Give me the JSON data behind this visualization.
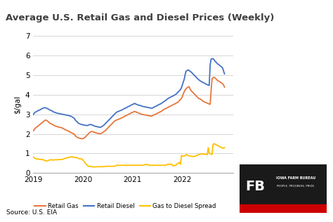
{
  "title": "Average U.S. Retail Gas and Diesel Prices (Weekly)",
  "ylabel": "$/gal",
  "source": "Source: U.S. EIA",
  "ylim": [
    0,
    7
  ],
  "yticks": [
    0,
    1,
    2,
    3,
    4,
    5,
    6,
    7
  ],
  "xlim": [
    0,
    209
  ],
  "xtick_positions": [
    0,
    52,
    104,
    156
  ],
  "xtick_labels": [
    "2019",
    "2020",
    "2021",
    "2022"
  ],
  "color_gas": "#E8763A",
  "color_diesel": "#4472C4",
  "color_spread": "#FFC000",
  "background_color": "#FFFFFF",
  "grid_color": "#D0D0D0",
  "title_fontsize": 10,
  "title_fontweight": "bold",
  "retail_gas": [
    2.15,
    2.22,
    2.28,
    2.32,
    2.36,
    2.4,
    2.44,
    2.48,
    2.52,
    2.56,
    2.6,
    2.64,
    2.68,
    2.7,
    2.68,
    2.65,
    2.6,
    2.55,
    2.52,
    2.5,
    2.48,
    2.45,
    2.42,
    2.4,
    2.38,
    2.37,
    2.35,
    2.34,
    2.33,
    2.32,
    2.3,
    2.28,
    2.25,
    2.22,
    2.2,
    2.18,
    2.16,
    2.13,
    2.1,
    2.08,
    2.05,
    2.03,
    2.0,
    1.98,
    1.9,
    1.85,
    1.82,
    1.8,
    1.78,
    1.77,
    1.76,
    1.75,
    1.76,
    1.78,
    1.82,
    1.87,
    1.92,
    1.97,
    2.02,
    2.07,
    2.1,
    2.12,
    2.11,
    2.1,
    2.08,
    2.06,
    2.04,
    2.03,
    2.02,
    2.01,
    2.0,
    2.02,
    2.05,
    2.08,
    2.12,
    2.16,
    2.2,
    2.25,
    2.3,
    2.35,
    2.4,
    2.45,
    2.5,
    2.55,
    2.6,
    2.65,
    2.68,
    2.7,
    2.72,
    2.74,
    2.76,
    2.78,
    2.8,
    2.82,
    2.85,
    2.88,
    2.9,
    2.92,
    2.95,
    2.98,
    3.0,
    3.02,
    3.05,
    3.08,
    3.1,
    3.12,
    3.14,
    3.12,
    3.1,
    3.08,
    3.06,
    3.04,
    3.02,
    3.0,
    2.99,
    2.98,
    2.97,
    2.96,
    2.95,
    2.94,
    2.93,
    2.92,
    2.91,
    2.9,
    2.91,
    2.93,
    2.95,
    2.98,
    3.0,
    3.02,
    3.05,
    3.08,
    3.1,
    3.12,
    3.15,
    3.18,
    3.22,
    3.25,
    3.28,
    3.3,
    3.32,
    3.35,
    3.38,
    3.4,
    3.42,
    3.45,
    3.48,
    3.5,
    3.52,
    3.55,
    3.58,
    3.6,
    3.65,
    3.7,
    3.75,
    3.8,
    3.9,
    4.05,
    4.15,
    4.25,
    4.3,
    4.35,
    4.38,
    4.4,
    4.28,
    4.2,
    4.15,
    4.1,
    4.05,
    4.0,
    3.95,
    3.9,
    3.85,
    3.8,
    3.78,
    3.76,
    3.72,
    3.68,
    3.65,
    3.62,
    3.6,
    3.58,
    3.56,
    3.54,
    3.52,
    3.5,
    4.2,
    4.8,
    4.85,
    4.88,
    4.85,
    4.8,
    4.75,
    4.7,
    4.68,
    4.65,
    4.62,
    4.58,
    4.55,
    4.48,
    4.38,
    3.8,
    3.72,
    3.68
  ],
  "retail_diesel": [
    2.98,
    3.05,
    3.1,
    3.12,
    3.15,
    3.18,
    3.2,
    3.22,
    3.25,
    3.28,
    3.3,
    3.32,
    3.33,
    3.32,
    3.3,
    3.28,
    3.25,
    3.22,
    3.2,
    3.18,
    3.15,
    3.12,
    3.1,
    3.08,
    3.06,
    3.05,
    3.04,
    3.03,
    3.02,
    3.01,
    3.0,
    2.99,
    2.98,
    2.97,
    2.96,
    2.95,
    2.94,
    2.93,
    2.92,
    2.9,
    2.88,
    2.85,
    2.82,
    2.78,
    2.7,
    2.65,
    2.6,
    2.55,
    2.52,
    2.5,
    2.48,
    2.47,
    2.46,
    2.45,
    2.44,
    2.43,
    2.42,
    2.43,
    2.45,
    2.47,
    2.48,
    2.46,
    2.44,
    2.42,
    2.4,
    2.38,
    2.37,
    2.36,
    2.35,
    2.34,
    2.33,
    2.35,
    2.38,
    2.41,
    2.45,
    2.5,
    2.55,
    2.6,
    2.65,
    2.7,
    2.75,
    2.8,
    2.85,
    2.9,
    2.95,
    3.0,
    3.05,
    3.1,
    3.12,
    3.14,
    3.16,
    3.18,
    3.2,
    3.22,
    3.25,
    3.28,
    3.3,
    3.32,
    3.35,
    3.38,
    3.4,
    3.42,
    3.45,
    3.48,
    3.5,
    3.52,
    3.55,
    3.52,
    3.5,
    3.48,
    3.46,
    3.45,
    3.44,
    3.42,
    3.4,
    3.39,
    3.38,
    3.37,
    3.36,
    3.35,
    3.34,
    3.33,
    3.32,
    3.31,
    3.3,
    3.32,
    3.35,
    3.38,
    3.4,
    3.42,
    3.45,
    3.48,
    3.5,
    3.52,
    3.55,
    3.58,
    3.62,
    3.65,
    3.68,
    3.72,
    3.76,
    3.8,
    3.82,
    3.85,
    3.88,
    3.9,
    3.92,
    3.95,
    3.98,
    4.0,
    4.05,
    4.1,
    4.15,
    4.2,
    4.25,
    4.35,
    4.5,
    4.65,
    4.8,
    5.05,
    5.2,
    5.22,
    5.25,
    5.22,
    5.18,
    5.15,
    5.1,
    5.05,
    5.0,
    4.95,
    4.9,
    4.85,
    4.8,
    4.75,
    4.72,
    4.68,
    4.65,
    4.62,
    4.6,
    4.58,
    4.55,
    4.52,
    4.5,
    4.48,
    4.46,
    5.5,
    5.8,
    5.82,
    5.82,
    5.78,
    5.7,
    5.65,
    5.6,
    5.55,
    5.52,
    5.48,
    5.44,
    5.4,
    5.35,
    5.2,
    5.05,
    4.98,
    4.96
  ],
  "spread": [
    0.83,
    0.78,
    0.75,
    0.72,
    0.73,
    0.73,
    0.7,
    0.7,
    0.7,
    0.7,
    0.68,
    0.67,
    0.65,
    0.62,
    0.62,
    0.63,
    0.65,
    0.67,
    0.68,
    0.68,
    0.67,
    0.67,
    0.68,
    0.68,
    0.68,
    0.68,
    0.69,
    0.69,
    0.69,
    0.69,
    0.7,
    0.71,
    0.73,
    0.75,
    0.76,
    0.77,
    0.78,
    0.8,
    0.82,
    0.82,
    0.83,
    0.82,
    0.82,
    0.8,
    0.8,
    0.8,
    0.78,
    0.75,
    0.74,
    0.73,
    0.72,
    0.72,
    0.66,
    0.6,
    0.54,
    0.48,
    0.42,
    0.38,
    0.35,
    0.35,
    0.34,
    0.33,
    0.32,
    0.32,
    0.32,
    0.32,
    0.32,
    0.33,
    0.33,
    0.33,
    0.33,
    0.33,
    0.33,
    0.33,
    0.33,
    0.34,
    0.35,
    0.35,
    0.35,
    0.35,
    0.35,
    0.35,
    0.35,
    0.35,
    0.35,
    0.35,
    0.37,
    0.4,
    0.4,
    0.4,
    0.4,
    0.4,
    0.4,
    0.4,
    0.4,
    0.4,
    0.4,
    0.4,
    0.4,
    0.4,
    0.4,
    0.4,
    0.4,
    0.4,
    0.4,
    0.4,
    0.4,
    0.4,
    0.4,
    0.4,
    0.4,
    0.4,
    0.4,
    0.4,
    0.4,
    0.4,
    0.42,
    0.44,
    0.44,
    0.44,
    0.44,
    0.4,
    0.4,
    0.4,
    0.4,
    0.4,
    0.4,
    0.4,
    0.4,
    0.4,
    0.4,
    0.4,
    0.4,
    0.4,
    0.4,
    0.4,
    0.4,
    0.4,
    0.4,
    0.4,
    0.44,
    0.45,
    0.44,
    0.45,
    0.46,
    0.45,
    0.37,
    0.37,
    0.4,
    0.4,
    0.45,
    0.5,
    0.5,
    0.55,
    0.45,
    0.9,
    0.87,
    0.85,
    0.87,
    0.9,
    0.95,
    0.92,
    0.9,
    0.88,
    0.86,
    0.86,
    0.86,
    0.85,
    0.85,
    0.85,
    0.88,
    0.9,
    0.92,
    0.95,
    0.95,
    0.97,
    0.98,
    0.98,
    0.97,
    0.96,
    0.97,
    0.96,
    0.94,
    1.3,
    1.0,
    1.0,
    0.97,
    0.95,
    1.45,
    1.5,
    1.48,
    1.45,
    1.42,
    1.4,
    1.38,
    1.35,
    1.32,
    1.3,
    1.27,
    1.28,
    1.3
  ]
}
